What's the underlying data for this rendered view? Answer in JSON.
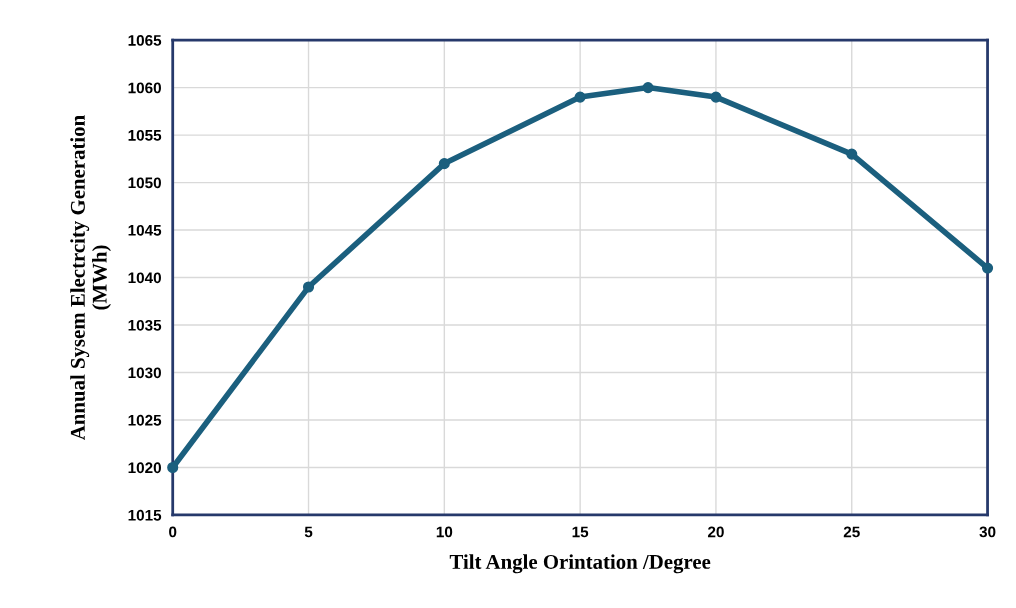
{
  "chart_data": {
    "type": "line",
    "xlabel": "Tilt Angle Orintation /Degree",
    "ylabel": "Annual Sysem Electrcity Generation\n(MWh)",
    "x": [
      0,
      5,
      10,
      15,
      17.5,
      20,
      25,
      30
    ],
    "series": [
      {
        "color": "#1b5f7e",
        "values": [
          1020,
          1039,
          1052,
          1059,
          1060,
          1059,
          1053,
          1041
        ]
      }
    ],
    "xlim": [
      0,
      30
    ],
    "xticks": [
      0,
      5,
      10,
      15,
      20,
      25,
      30
    ],
    "ylim": [
      1015,
      1065
    ],
    "yticks": [
      1015,
      1020,
      1025,
      1030,
      1035,
      1040,
      1045,
      1050,
      1055,
      1060,
      1065
    ],
    "grid": true,
    "marker": "circle",
    "line_style": "solid",
    "legend": false
  }
}
